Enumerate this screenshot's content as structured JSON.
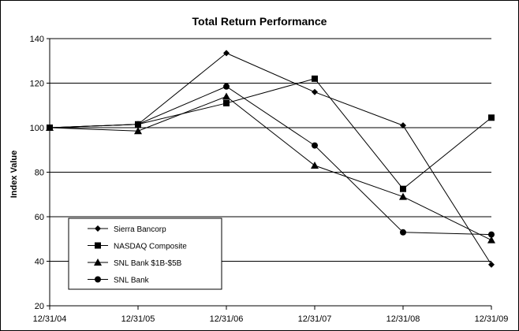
{
  "chart_data": {
    "type": "line",
    "title": "Total Return Performance",
    "xlabel": "",
    "ylabel": "Index Value",
    "categories": [
      "12/31/04",
      "12/31/05",
      "12/31/06",
      "12/31/07",
      "12/31/08",
      "12/31/09"
    ],
    "ylim": [
      20,
      140
    ],
    "yticks": [
      20,
      40,
      60,
      80,
      100,
      120,
      140
    ],
    "grid": true,
    "legend_position": "bottom-left",
    "series": [
      {
        "name": "Sierra Bancorp",
        "marker": "diamond",
        "values": [
          100,
          101.5,
          133.5,
          116,
          101,
          38.5
        ]
      },
      {
        "name": "NASDAQ Composite",
        "marker": "square",
        "values": [
          100,
          101.5,
          111,
          122,
          72.5,
          104.5
        ]
      },
      {
        "name": "SNL Bank $1B-$5B",
        "marker": "triangle",
        "values": [
          100,
          98.5,
          114,
          83,
          69,
          49.5
        ]
      },
      {
        "name": "SNL Bank",
        "marker": "circle",
        "values": [
          100,
          101.5,
          118.5,
          92,
          53,
          52
        ]
      }
    ]
  }
}
